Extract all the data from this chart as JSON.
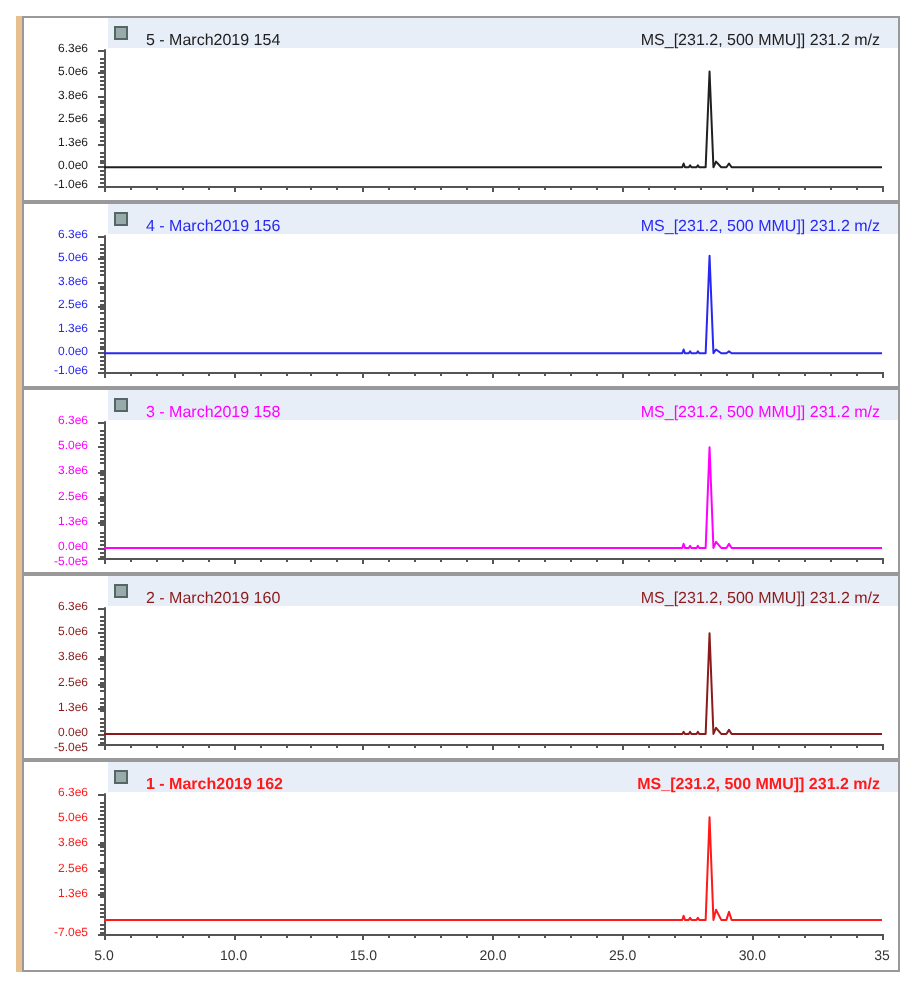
{
  "chart_data": [
    {
      "type": "line",
      "title": "5 - March2019 154",
      "subtitle": "MS_[231.2, 500 MMU]] 231.2 m/z",
      "tick_labels": "y",
      "xlim": [
        5,
        35
      ],
      "xticks": [
        5,
        10,
        15,
        20,
        25,
        30,
        35
      ],
      "ylim": [
        -1000000,
        6250000
      ],
      "yticks": [
        {
          "value": -1000000,
          "label": "-1.0e6"
        },
        {
          "value": 0,
          "label": "0.0e0"
        },
        {
          "value": 1250000,
          "label": "1.3e6"
        },
        {
          "value": 2500000,
          "label": "2.5e6"
        },
        {
          "value": 3750000,
          "label": "3.8e6"
        },
        {
          "value": 5000000,
          "label": "5.0e6"
        },
        {
          "value": 6250000,
          "label": "6.3e6"
        }
      ],
      "series": [
        {
          "color": "#202020",
          "x": [
            5,
            27.3,
            27.35,
            27.4,
            27.55,
            27.6,
            27.65,
            27.85,
            27.9,
            27.95,
            28.2,
            28.35,
            28.5,
            28.6,
            28.8,
            29.0,
            29.1,
            29.2,
            35
          ],
          "values": [
            0,
            0,
            200000,
            0,
            0,
            100000,
            0,
            0,
            100000,
            0,
            0,
            5100000,
            0,
            300000,
            0,
            0,
            200000,
            0,
            0
          ]
        }
      ]
    },
    {
      "type": "line",
      "title": "4 - March2019 156",
      "subtitle": "MS_[231.2, 500 MMU]] 231.2 m/z",
      "tick_labels": "y",
      "xlim": [
        5,
        35
      ],
      "xticks": [
        5,
        10,
        15,
        20,
        25,
        30,
        35
      ],
      "ylim": [
        -1000000,
        6250000
      ],
      "yticks": [
        {
          "value": -1000000,
          "label": "-1.0e6"
        },
        {
          "value": 0,
          "label": "0.0e0"
        },
        {
          "value": 1250000,
          "label": "1.3e6"
        },
        {
          "value": 2500000,
          "label": "2.5e6"
        },
        {
          "value": 3750000,
          "label": "3.8e6"
        },
        {
          "value": 5000000,
          "label": "5.0e6"
        },
        {
          "value": 6250000,
          "label": "6.3e6"
        }
      ],
      "series": [
        {
          "color": "#2828f0",
          "x": [
            5,
            27.3,
            27.35,
            27.4,
            27.55,
            27.6,
            27.65,
            27.85,
            27.9,
            27.95,
            28.2,
            28.35,
            28.5,
            28.6,
            28.8,
            29.0,
            29.1,
            29.2,
            35
          ],
          "values": [
            0,
            0,
            200000,
            0,
            0,
            100000,
            0,
            0,
            100000,
            0,
            0,
            5200000,
            0,
            200000,
            0,
            0,
            100000,
            0,
            0
          ]
        }
      ]
    },
    {
      "type": "line",
      "title": "3 - March2019 158",
      "subtitle": "MS_[231.2, 500 MMU]] 231.2 m/z",
      "tick_labels": "y",
      "xlim": [
        5,
        35
      ],
      "xticks": [
        5,
        10,
        15,
        20,
        25,
        30,
        35
      ],
      "ylim": [
        -500000,
        6250000
      ],
      "yticks": [
        {
          "value": -500000,
          "label": "-5.0e5"
        },
        {
          "value": 0,
          "label": "0.0e0"
        },
        {
          "value": 1250000,
          "label": "1.3e6"
        },
        {
          "value": 2500000,
          "label": "2.5e6"
        },
        {
          "value": 3750000,
          "label": "3.8e6"
        },
        {
          "value": 5000000,
          "label": "5.0e6"
        },
        {
          "value": 6250000,
          "label": "6.3e6"
        }
      ],
      "series": [
        {
          "color": "#ff00ff",
          "x": [
            5,
            27.3,
            27.35,
            27.4,
            27.55,
            27.6,
            27.65,
            27.85,
            27.9,
            27.95,
            28.2,
            28.35,
            28.5,
            28.6,
            28.8,
            29.0,
            29.1,
            29.2,
            35
          ],
          "values": [
            0,
            0,
            200000,
            0,
            0,
            100000,
            0,
            0,
            100000,
            0,
            0,
            5000000,
            0,
            300000,
            0,
            0,
            200000,
            0,
            0
          ]
        }
      ]
    },
    {
      "type": "line",
      "title": "2 - March2019 160",
      "subtitle": "MS_[231.2, 500 MMU]] 231.2 m/z",
      "tick_labels": "y",
      "xlim": [
        5,
        35
      ],
      "xticks": [
        5,
        10,
        15,
        20,
        25,
        30,
        35
      ],
      "ylim": [
        -500000,
        6250000
      ],
      "yticks": [
        {
          "value": -500000,
          "label": "-5.0e5"
        },
        {
          "value": 0,
          "label": "0.0e0"
        },
        {
          "value": 1250000,
          "label": "1.3e6"
        },
        {
          "value": 2500000,
          "label": "2.5e6"
        },
        {
          "value": 3750000,
          "label": "3.8e6"
        },
        {
          "value": 5000000,
          "label": "5.0e6"
        },
        {
          "value": 6250000,
          "label": "6.3e6"
        }
      ],
      "series": [
        {
          "color": "#8b1a1a",
          "x": [
            5,
            27.3,
            27.35,
            27.4,
            27.55,
            27.6,
            27.65,
            27.85,
            27.9,
            27.95,
            28.2,
            28.35,
            28.5,
            28.6,
            28.8,
            29.0,
            29.1,
            29.2,
            35
          ],
          "values": [
            0,
            0,
            100000,
            0,
            0,
            100000,
            0,
            0,
            100000,
            0,
            0,
            5000000,
            0,
            300000,
            0,
            0,
            200000,
            0,
            0
          ]
        }
      ]
    },
    {
      "type": "line",
      "title": "1 - March2019 162",
      "subtitle": "MS_[231.2, 500 MMU]] 231.2 m/z",
      "xlim": [
        5,
        35
      ],
      "xticks": [
        {
          "value": 5,
          "label": "5.0"
        },
        {
          "value": 10,
          "label": "10.0"
        },
        {
          "value": 15,
          "label": "15.0"
        },
        {
          "value": 20,
          "label": "20.0"
        },
        {
          "value": 25,
          "label": "25.0"
        },
        {
          "value": 30,
          "label": "30.0"
        },
        {
          "value": 35,
          "label": "35"
        }
      ],
      "ylim": [
        -700000,
        6250000
      ],
      "yticks": [
        {
          "value": -700000,
          "label": "-7.0e5"
        },
        {
          "value": 1250000,
          "label": "1.3e6"
        },
        {
          "value": 2500000,
          "label": "2.5e6"
        },
        {
          "value": 3750000,
          "label": "3.8e6"
        },
        {
          "value": 5000000,
          "label": "5.0e6"
        },
        {
          "value": 6250000,
          "label": "6.3e6"
        }
      ],
      "series": [
        {
          "color": "#ff1a1a",
          "x": [
            5,
            27.3,
            27.35,
            27.4,
            27.55,
            27.6,
            27.65,
            27.85,
            27.9,
            27.95,
            28.2,
            28.35,
            28.5,
            28.6,
            28.8,
            29.0,
            29.1,
            29.2,
            35
          ],
          "values": [
            0,
            0,
            200000,
            0,
            0,
            100000,
            0,
            0,
            100000,
            0,
            0,
            5100000,
            0,
            500000,
            0,
            0,
            400000,
            0,
            0
          ]
        }
      ]
    }
  ]
}
